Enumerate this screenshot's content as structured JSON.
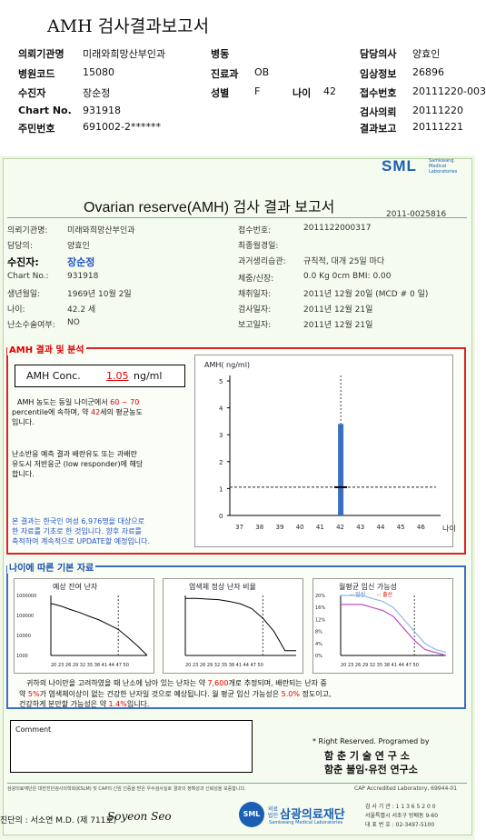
{
  "report_title": "AMH 검사결과보고서",
  "header": {
    "rows": [
      [
        {
          "label": "의뢰기관명",
          "value": "미래와희망산부인과"
        },
        {
          "label": "병동",
          "value": ""
        },
        {
          "label": "담당의사",
          "value": "양효인"
        }
      ],
      [
        {
          "label": "병원코드",
          "value": "15080"
        },
        {
          "label": "진료과",
          "value": "OB"
        },
        {
          "label": "임상정보",
          "value": "26896"
        }
      ],
      [
        {
          "label": "수진자",
          "value": "장순정"
        },
        {
          "label": "성별",
          "value": "F"
        },
        {
          "label": "나이",
          "value": "42"
        },
        {
          "label": "접수번호",
          "value": "20111220-003"
        }
      ],
      [
        {
          "label": "Chart No.",
          "value": "931918"
        },
        {
          "label": "검사의뢰",
          "value": "20111220"
        }
      ],
      [
        {
          "label": "주민번호",
          "value": "691002-2******"
        },
        {
          "label": "결과보고",
          "value": "20111221"
        }
      ]
    ]
  },
  "sml_logo": {
    "brand": "SML",
    "sub1": "Samkwang",
    "sub2": "Medical",
    "sub3": "Laboratories"
  },
  "report_heading": "Ovarian reserve(AMH) 검사 결과 보고서",
  "report_id": "2011-0025816",
  "info": {
    "left": [
      {
        "label": "의뢰기관명:",
        "value": "미래와희망산부인과"
      },
      {
        "label": "담당의:",
        "value": "양효인"
      },
      {
        "label": "수진자:",
        "value": "장순정"
      },
      {
        "label": "Chart No.:",
        "value": "931918"
      },
      {
        "label": "생년월일:",
        "value": "1969년 10월 2일"
      },
      {
        "label": "나이:",
        "value": "42.2 세"
      },
      {
        "label": "난소수술여부:",
        "value": "NO"
      }
    ],
    "right": [
      {
        "label": "접수번호:",
        "value": "2011122000317"
      },
      {
        "label": "최종월경일:",
        "value": ""
      },
      {
        "label": "과거생리습관:",
        "value": "규칙적, 대개  25일 마다"
      },
      {
        "label": "체중/신장:",
        "value": "0.0 Kg       0cm   BMI:  0.00"
      },
      {
        "label": "채취일자:",
        "value": "2011년 12월 20일  (MCD # 0 일)"
      },
      {
        "label": "검사일자:",
        "value": "2011년 12월 21일"
      },
      {
        "label": "보고일자:",
        "value": "2011년 12월 21일"
      }
    ]
  },
  "amh_section": {
    "title": "AMH 결과 및 분석",
    "conc_label": "AMH Conc.",
    "conc_value": "1.05",
    "conc_unit": "ng/ml",
    "text1a": "AMH 농도는 동일 나이군에서",
    "text1b": "60 ~ 70",
    "text1c": "percentile에 속하며, 약",
    "text1d": "42",
    "text1e": "세의 평균농도",
    "text1f": "입니다.",
    "text2a": "난소반응 예측 결과 배란유도 또는 과배란",
    "text2b": "유도시 저반응군 (low responder)에 해당",
    "text2c": "합니다.",
    "note1": "본 결과는 한국인 여성 6,976명을 대상으로",
    "note2": "한 자료를 기초로 한 것입니다. 향후 자료를",
    "note3": "축적하여 계속적으로 UPDATE할 예정입니다."
  },
  "chart_data": [
    {
      "type": "bar",
      "title": "",
      "ylabel": "AMH( ng/ml)",
      "xlabel": "나이",
      "x": [
        37,
        38,
        39,
        40,
        41,
        42,
        43,
        44,
        45,
        46
      ],
      "y_ticks": [
        0,
        1,
        2,
        3,
        4,
        5
      ],
      "ylim": [
        0,
        5
      ],
      "bar": {
        "x": 42,
        "low": 0,
        "high": 3.4
      },
      "patient": {
        "x": 42,
        "y": 1.05
      },
      "reference_line_y": 1.05,
      "colors": {
        "bar": "#3a6fbf"
      }
    },
    {
      "type": "line",
      "title": "예상 잔여 난자",
      "y_ticks": [
        "1000000",
        "100000",
        "10000",
        "1000"
      ],
      "x_ticks": "20 23 26 29 32 35 38 41 44 47 50",
      "yscale": "log",
      "x": [
        20,
        23,
        26,
        29,
        32,
        35,
        38,
        41,
        44,
        47,
        50
      ],
      "y": [
        400000,
        300000,
        200000,
        140000,
        90000,
        60000,
        35000,
        20000,
        8000,
        3000,
        1000
      ]
    },
    {
      "type": "line",
      "title": "염색체 정상 난자 비율",
      "x_ticks": "20 23 26 29 32 35 38 41 44 47 50",
      "x": [
        20,
        23,
        26,
        29,
        32,
        35,
        38,
        41,
        44,
        47,
        50
      ],
      "y": [
        95,
        95,
        94,
        93,
        90,
        86,
        78,
        62,
        40,
        8,
        8
      ]
    },
    {
      "type": "line",
      "title": "월평균 임신 가능성",
      "legend": [
        "-: 임신",
        "-: 출산"
      ],
      "y_ticks": [
        "20%",
        "16%",
        "12%",
        "8%",
        "4%",
        "0%"
      ],
      "x_ticks": "20 23 26 29 32 35 38 41 44 47 50",
      "x": [
        20,
        23,
        26,
        29,
        32,
        35,
        38,
        41,
        44,
        47,
        50
      ],
      "series": [
        {
          "name": "임신",
          "values": [
            20,
            20,
            20,
            19,
            18,
            16,
            12,
            8,
            4,
            2,
            1
          ]
        },
        {
          "name": "출산",
          "values": [
            17,
            17,
            17,
            16,
            15,
            13,
            9,
            5,
            2,
            1,
            0
          ]
        }
      ],
      "colors": {
        "임신": "#8fb8e8",
        "출산": "#c04cc0"
      }
    }
  ],
  "basic_section": {
    "title": "나이에 따른 기본 자료",
    "summary1a": "귀하의 나이만을 고려하였을 때 난소에 남아 있는 난자는 약",
    "summary1b": "7,600",
    "summary1c": "개로 추정되며, 배란되는 난자 중",
    "summary2a": "약",
    "summary2b": "5%",
    "summary2c": "가 염색체이상이 없는 건강한 난자일 것으로 예상됩니다. 월 평균 임신 가능성은",
    "summary2d": "5.0%",
    "summary2e": "정도이고,",
    "summary3a": "건강하게 분만할 가능성은 약",
    "summary3b": "1.4%",
    "summary3c": "입니다."
  },
  "comment_label": "Comment",
  "rights": {
    "line1": "* Right Reserved. Programed by",
    "line2": "함 춘 기 술 연 구 소",
    "line3": "함춘 불임·유전 연구소"
  },
  "footer": {
    "cert": "삼광의료재단은 대한진단검사의학회(KSLM) 및 CAP의 신임 인증을 받은 우수검사실로 결과의 정확성과 신뢰성을 보증합니다.",
    "cap": "CAP Accredited Laboratory, 69944-01",
    "doctor": "진단의 : 서소연 M.D. (제 711호)",
    "signature": "Soyeon Seo",
    "foundation_prefix": "의료법인",
    "foundation": "삼광의료재단",
    "foundation_en": "Samkwang Medical Laboratories",
    "addr1": "검 사 기 관 : 1 1 3 6 5 2 0 0",
    "addr2": "서울특별시 서초구 방배동 9-60",
    "addr3": "대 표 번 호 : 02-3497-5100"
  }
}
